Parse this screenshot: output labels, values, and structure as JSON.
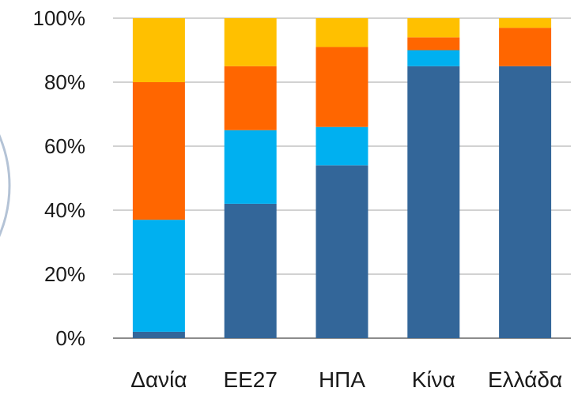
{
  "chart_data": {
    "type": "bar",
    "stacked": true,
    "percent": true,
    "categories": [
      "Δανία",
      "ΕΕ27",
      "ΗΠΑ",
      "Κίνα",
      "Ελλάδα"
    ],
    "series": [
      {
        "values": [
          2,
          42,
          54,
          85,
          85
        ],
        "color": "#336699"
      },
      {
        "values": [
          35,
          23,
          12,
          5,
          0
        ],
        "color": "#00b0f0"
      },
      {
        "values": [
          43,
          20,
          25,
          4,
          12
        ],
        "color": "#ff6600"
      },
      {
        "values": [
          20,
          15,
          9,
          6,
          3
        ],
        "color": "#ffc000"
      }
    ],
    "y_ticks": [
      "0%",
      "20%",
      "40%",
      "60%",
      "80%",
      "100%"
    ],
    "ylim": [
      0,
      100
    ],
    "grid": true,
    "legend": "none"
  }
}
